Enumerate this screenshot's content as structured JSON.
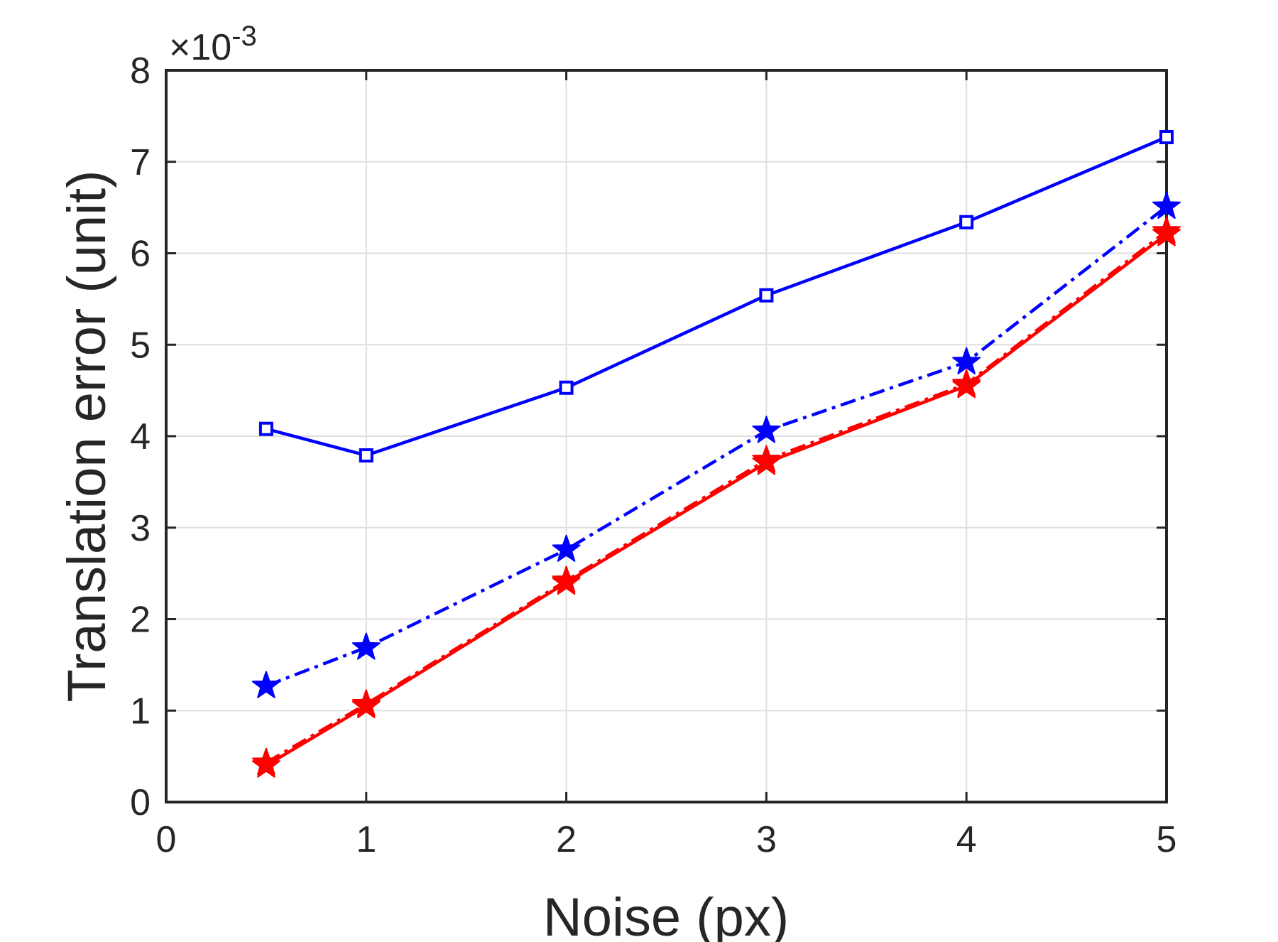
{
  "chart_data": {
    "type": "line",
    "xlabel": "Noise (px)",
    "ylabel": "Translation error (unit)",
    "exponent": {
      "times": "×10",
      "power": "-3"
    },
    "xlim": [
      0,
      5
    ],
    "ylim": [
      0,
      8
    ],
    "xticks": [
      "0",
      "1",
      "2",
      "3",
      "4",
      "5"
    ],
    "yticks": [
      "0",
      "1",
      "2",
      "3",
      "4",
      "5",
      "6",
      "7",
      "8"
    ],
    "grid": true,
    "x": [
      0.5,
      1,
      2,
      3,
      4,
      5
    ],
    "series": [
      {
        "color": "#0000ff",
        "line": "solid",
        "marker": "square",
        "values": [
          4.08,
          3.79,
          4.53,
          5.54,
          6.34,
          7.27
        ]
      },
      {
        "color": "#0000ff",
        "line": "dashdot",
        "marker": "star",
        "values": [
          1.27,
          1.69,
          2.76,
          4.06,
          4.81,
          6.51
        ]
      },
      {
        "color": "#ff0000",
        "line": "dashdot",
        "marker": "star",
        "values": [
          0.43,
          1.07,
          2.42,
          3.74,
          4.57,
          6.24
        ]
      },
      {
        "color": "#ff0000",
        "line": "solid",
        "marker": "star",
        "values": [
          0.4,
          1.05,
          2.4,
          3.71,
          4.55,
          6.21
        ]
      }
    ]
  }
}
